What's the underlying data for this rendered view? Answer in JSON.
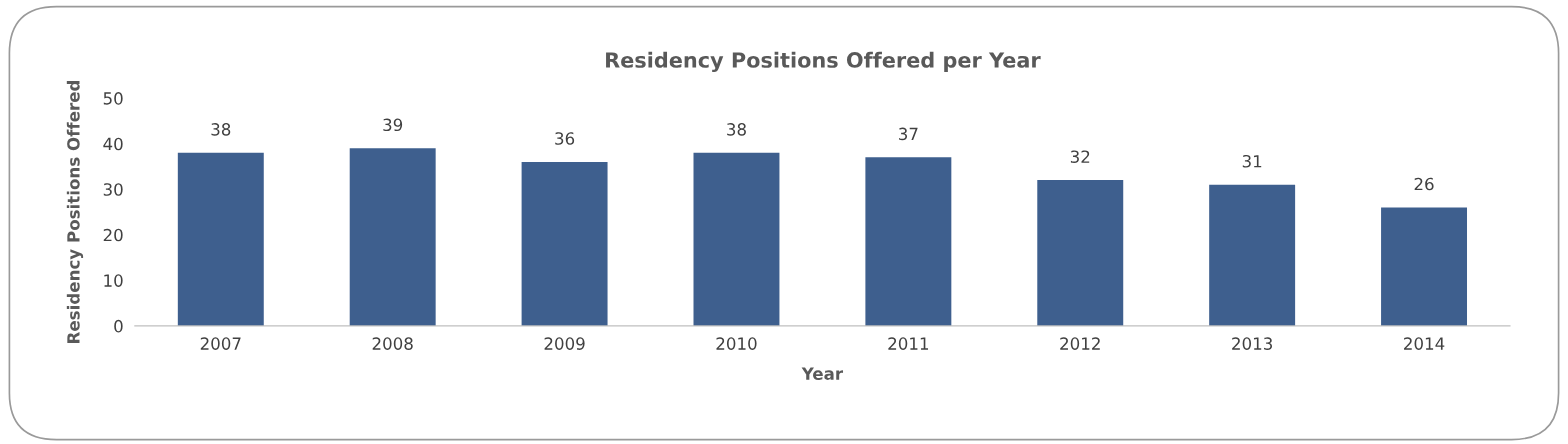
{
  "chart_data": {
    "type": "bar",
    "title": "Residency Positions Offered per Year",
    "xlabel": "Year",
    "ylabel": "Residency Positions Offered",
    "categories": [
      "2007",
      "2008",
      "2009",
      "2010",
      "2011",
      "2012",
      "2013",
      "2014"
    ],
    "values": [
      38,
      39,
      36,
      38,
      37,
      32,
      31,
      26
    ],
    "color": "#3e5f8e",
    "ylim": [
      0,
      50
    ],
    "yticks": [
      0,
      10,
      20,
      30,
      40,
      50
    ],
    "grid": false,
    "legend": false,
    "data_labels": true
  }
}
